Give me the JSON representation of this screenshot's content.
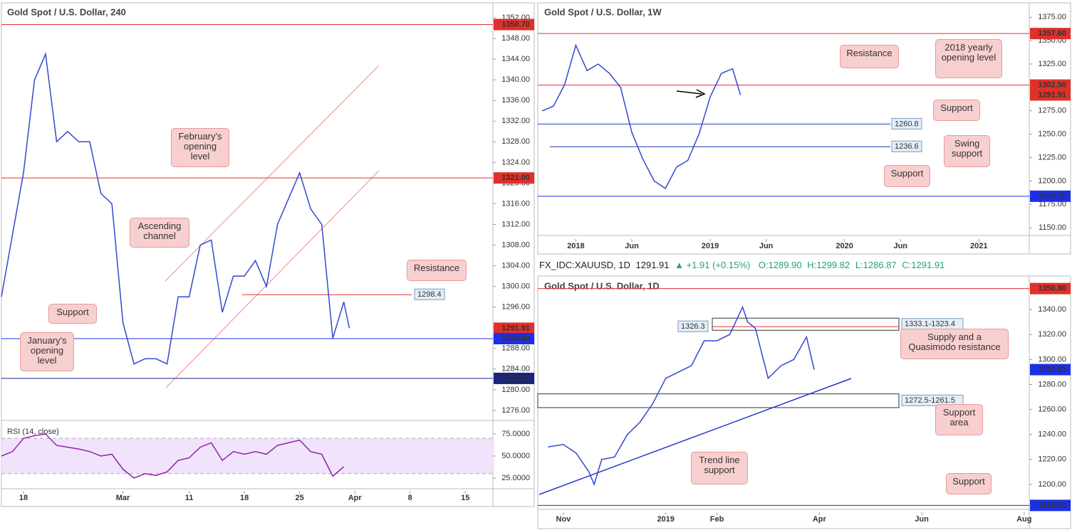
{
  "chart_data": [
    {
      "type": "line",
      "title": "Gold Spot / U.S. Dollar, 240",
      "color": "#3048d0",
      "x": [
        -2,
        -1,
        0,
        1,
        2,
        3,
        4,
        5,
        6,
        7,
        8,
        9,
        10,
        11,
        12,
        13,
        14,
        15,
        16,
        17,
        18,
        19,
        20,
        21,
        22,
        23,
        24,
        25,
        26,
        27,
        28,
        29,
        29.5
      ],
      "values": [
        1298,
        1310,
        1322,
        1340,
        1345,
        1328,
        1330,
        1328,
        1328,
        1318,
        1316,
        1293,
        1285,
        1286,
        1286,
        1285,
        1298,
        1298,
        1308,
        1309,
        1295,
        1302,
        1302,
        1305,
        1300,
        1312,
        1317,
        1322,
        1315,
        1312,
        1290,
        1297,
        1291.91
      ],
      "xlim": [
        -2,
        42.5
      ],
      "ylim": [
        1274.2,
        1354.9
      ],
      "xticks": [
        {
          "value": 0,
          "label": "18"
        },
        {
          "value": 9,
          "label": "Mar"
        },
        {
          "value": 15,
          "label": "11"
        },
        {
          "value": 20,
          "label": "18"
        },
        {
          "value": 25,
          "label": "25"
        },
        {
          "value": 30,
          "label": "Apr"
        },
        {
          "value": 35,
          "label": "8"
        },
        {
          "value": 40,
          "label": "15"
        }
      ],
      "yticks": [
        {
          "value": 1276,
          "label": "1276.00"
        },
        {
          "value": 1280,
          "label": "1280.00"
        },
        {
          "value": 1284,
          "label": "1284.00"
        },
        {
          "value": 1288,
          "label": "1288.00"
        },
        {
          "value": 1292,
          "label": "1292.00"
        },
        {
          "value": 1296,
          "label": "1296.00"
        },
        {
          "value": 1300,
          "label": "1300.00"
        },
        {
          "value": 1304,
          "label": "1304.00"
        },
        {
          "value": 1308,
          "label": "1308.00"
        },
        {
          "value": 1312,
          "label": "1312.00"
        },
        {
          "value": 1316,
          "label": "1316.00"
        },
        {
          "value": 1320,
          "label": "1320.00"
        },
        {
          "value": 1324,
          "label": "1324.00"
        },
        {
          "value": 1328,
          "label": "1328.00"
        },
        {
          "value": 1332,
          "label": "1332.00"
        },
        {
          "value": 1336,
          "label": "1336.00"
        },
        {
          "value": 1340,
          "label": "1340.00"
        },
        {
          "value": 1344,
          "label": "1344.00"
        },
        {
          "value": 1348,
          "label": "1348.00"
        },
        {
          "value": 1352,
          "label": "1352.00"
        }
      ],
      "levels": [
        {
          "value": 1350.7,
          "label": "1350.70",
          "color": "#e0302a",
          "line": true
        },
        {
          "value": 1321,
          "label": "1321.00",
          "color": "#e0302a",
          "line": true
        },
        {
          "value": 1291.91,
          "label": "1291.91",
          "color": "#e0302a",
          "line": false
        },
        {
          "value": 1289.9,
          "label": "1289.90",
          "color": "#1c2fe6",
          "line": true
        },
        {
          "value": 1282.2,
          "label": "1282.20",
          "color": "#1a237e",
          "line": true
        }
      ],
      "lines": [
        1298.4
      ],
      "lines_color": "#e0302a",
      "annotations": [
        "February's opening level",
        "Ascending channel",
        "Resistance",
        "Support",
        "January's opening level"
      ]
    },
    {
      "type": "line",
      "title": "RSI (14, close)",
      "color": "#8e24aa",
      "x": [
        -2,
        -1,
        0,
        1,
        2,
        3,
        4,
        5,
        6,
        7,
        8,
        9,
        10,
        11,
        12,
        13,
        14,
        15,
        16,
        17,
        18,
        19,
        20,
        21,
        22,
        23,
        24,
        25,
        26,
        27,
        28,
        29
      ],
      "values": [
        50,
        55,
        70,
        73,
        75,
        62,
        60,
        58,
        55,
        50,
        52,
        35,
        25,
        30,
        28,
        32,
        45,
        48,
        60,
        65,
        45,
        55,
        52,
        55,
        52,
        62,
        65,
        68,
        55,
        52,
        27,
        38
      ],
      "xlim": [
        -2,
        42.5
      ],
      "ylim": [
        13.7,
        89.5
      ],
      "band": [
        30,
        70
      ],
      "yticks": [
        {
          "value": 75,
          "label": "75.0000"
        },
        {
          "value": 50,
          "label": "50.0000"
        },
        {
          "value": 25,
          "label": "25.0000"
        }
      ]
    },
    {
      "type": "line",
      "title": "Gold Spot / U.S. Dollar, 1W",
      "color": "#3048d0",
      "x": [
        -3,
        -2,
        -1,
        0,
        1,
        2,
        3,
        4,
        5,
        6,
        7,
        8,
        9,
        10,
        11,
        12,
        13,
        14,
        14.7
      ],
      "values": [
        1275,
        1280,
        1303,
        1345,
        1318,
        1325,
        1315,
        1300,
        1252,
        1223,
        1200,
        1192,
        1215,
        1222,
        1250,
        1290,
        1315,
        1320,
        1291.91
      ],
      "xlim": [
        -3.4,
        40.5
      ],
      "ylim": [
        1142.5,
        1390.4
      ],
      "xticks": [
        {
          "value": 0,
          "label": "2018"
        },
        {
          "value": 5,
          "label": "Jun"
        },
        {
          "value": 12,
          "label": "2019"
        },
        {
          "value": 17,
          "label": "Jun"
        },
        {
          "value": 24,
          "label": "2020"
        },
        {
          "value": 29,
          "label": "Jun"
        },
        {
          "value": 36,
          "label": "2021"
        }
      ],
      "yticks": [
        {
          "value": 1150,
          "label": "1150.00"
        },
        {
          "value": 1175,
          "label": "1175.00"
        },
        {
          "value": 1200,
          "label": "1200.00"
        },
        {
          "value": 1225,
          "label": "1225.00"
        },
        {
          "value": 1250,
          "label": "1250.00"
        },
        {
          "value": 1275,
          "label": "1275.00"
        },
        {
          "value": 1300,
          "label": "1300.00"
        },
        {
          "value": 1325,
          "label": "1325.00"
        },
        {
          "value": 1350,
          "label": "1350.00"
        },
        {
          "value": 1375,
          "label": "1375.00"
        }
      ],
      "levels": [
        {
          "value": 1357.6,
          "label": "1357.60",
          "color": "#e0302a",
          "line": true
        },
        {
          "value": 1302.5,
          "label": "1302.50",
          "color": "#e0302a",
          "line": true
        },
        {
          "value": 1291.91,
          "label": "1291.91",
          "color": "#e0302a",
          "line": false
        },
        {
          "value": 1183.7,
          "label": "1183.70",
          "color": "#1c2fe6",
          "line": true
        }
      ],
      "lines": [
        1260.8,
        1236.6
      ],
      "lines_color": "#2235c8",
      "annotations": [
        "Resistance",
        "2018 yearly opening level",
        "Support",
        "Swing support",
        "Support"
      ]
    },
    {
      "type": "line",
      "title": "Gold Spot / U.S. Dollar, 1D",
      "color": "#3048d0",
      "x": [
        -0.3,
        0,
        0.25,
        0.5,
        0.6,
        0.75,
        1,
        1.25,
        1.5,
        1.75,
        2,
        2.25,
        2.5,
        2.75,
        3,
        3.25,
        3.5,
        3.6,
        3.75,
        4,
        4.25,
        4.5,
        4.75,
        4.9
      ],
      "values": [
        1230,
        1232,
        1225,
        1210,
        1200,
        1220,
        1222,
        1240,
        1250,
        1265,
        1285,
        1290,
        1295,
        1315,
        1315,
        1320,
        1342,
        1330,
        1325,
        1285,
        1295,
        1300,
        1318,
        1291.91
      ],
      "xlim": [
        -0.5,
        9.1
      ],
      "ylim": [
        1180.6,
        1365.7
      ],
      "xticks": [
        {
          "value": 0,
          "label": "Nov"
        },
        {
          "value": 2,
          "label": "2019"
        },
        {
          "value": 3,
          "label": "Feb"
        },
        {
          "value": 5,
          "label": "Apr"
        },
        {
          "value": 7,
          "label": "Jun"
        },
        {
          "value": 9,
          "label": "Aug"
        }
      ],
      "yticks": [
        {
          "value": 1200,
          "label": "1200.00"
        },
        {
          "value": 1220,
          "label": "1220.00"
        },
        {
          "value": 1240,
          "label": "1240.00"
        },
        {
          "value": 1260,
          "label": "1260.00"
        },
        {
          "value": 1280,
          "label": "1280.00"
        },
        {
          "value": 1300,
          "label": "1300.00"
        },
        {
          "value": 1320,
          "label": "1320.00"
        },
        {
          "value": 1340,
          "label": "1340.00"
        }
      ],
      "levels": [
        {
          "value": 1356.8,
          "label": "1356.80",
          "color": "#e0302a",
          "line": true
        },
        {
          "value": 1291.91,
          "label": "1291.91",
          "color": "#1c2fe6",
          "line": false
        },
        {
          "value": 1183.2,
          "label": "1183.20",
          "color": "#1c2fe6",
          "line": true
        }
      ],
      "lines": [
        1326.3
      ],
      "lines_color": "#e0302a",
      "zones": [
        {
          "label": "1333.1-1323.4",
          "high": 1333.1,
          "low": 1323.4
        },
        {
          "label": "1272.5-1261.5",
          "high": 1272.5,
          "low": 1261.5
        }
      ],
      "annotations": [
        "Supply and a Quasimodo resistance",
        "Support area",
        "Trend line support",
        "Support"
      ]
    }
  ],
  "header": {
    "symbol": "FX_IDC:XAUUSD, 1D",
    "price": "1291.91",
    "change": "+1.91 (+0.15%)",
    "open": "O:1289.90",
    "high": "H:1299.82",
    "low": "L:1286.87",
    "close": "C:1291.91"
  }
}
